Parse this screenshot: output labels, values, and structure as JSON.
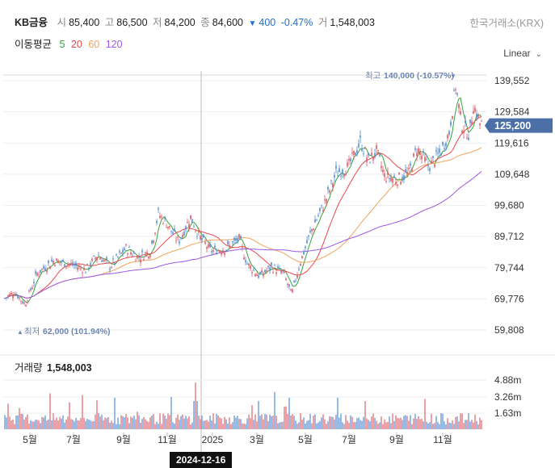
{
  "header": {
    "ticker": "KB금융",
    "open_label": "시",
    "open": "85,400",
    "high_label": "고",
    "high": "86,500",
    "low_label": "저",
    "low": "84,200",
    "close_label": "종",
    "close": "84,600",
    "change_icon": "down-triangle-icon",
    "change": "400",
    "change_pct": "-0.47%",
    "volume_label": "거",
    "volume": "1,548,003",
    "exchange": "한국거래소(KRX)"
  },
  "ma": {
    "label": "이동평균",
    "items": [
      {
        "label": "5",
        "color": "#36a33a"
      },
      {
        "label": "20",
        "color": "#e8474c"
      },
      {
        "label": "60",
        "color": "#f2a35c"
      },
      {
        "label": "120",
        "color": "#9b59e0"
      }
    ]
  },
  "scale": {
    "label": "Linear",
    "icon": "chevron-down-icon"
  },
  "colors": {
    "up": "#e05a66",
    "down": "#4f8fd6",
    "grid": "#ededed",
    "price_tag": "#4c6fa8"
  },
  "chart_data": {
    "type": "candlestick",
    "x_ticks": [
      "5월",
      "7월",
      "9월",
      "11월",
      "2025",
      "3월",
      "5월",
      "7월",
      "9월",
      "11월"
    ],
    "y_ticks": [
      "139,552",
      "129,584",
      "119,616",
      "109,648",
      "99,680",
      "89,712",
      "79,744",
      "69,776",
      "59,808"
    ],
    "ylim": [
      59808,
      139552
    ],
    "current_price": "125,200",
    "max_annotation": {
      "label": "최고",
      "value": "140,000",
      "pct": "(-10.57%)"
    },
    "min_annotation": {
      "label": "최저",
      "value": "62,000",
      "pct": "(101.94%)"
    },
    "crosshair_date": "2024-12-16",
    "close_series_approx": [
      [
        0,
        70000
      ],
      [
        12,
        72000
      ],
      [
        25,
        68000
      ],
      [
        40,
        78000
      ],
      [
        60,
        82000
      ],
      [
        80,
        81000
      ],
      [
        100,
        79000
      ],
      [
        115,
        84000
      ],
      [
        130,
        80000
      ],
      [
        150,
        86000
      ],
      [
        165,
        83000
      ],
      [
        180,
        85000
      ],
      [
        190,
        97000
      ],
      [
        200,
        94000
      ],
      [
        215,
        88000
      ],
      [
        230,
        96000
      ],
      [
        240,
        90000
      ],
      [
        255,
        85000
      ],
      [
        275,
        86000
      ],
      [
        290,
        89000
      ],
      [
        300,
        81000
      ],
      [
        315,
        77000
      ],
      [
        330,
        80000
      ],
      [
        345,
        78000
      ],
      [
        355,
        71000
      ],
      [
        365,
        81000
      ],
      [
        380,
        92000
      ],
      [
        395,
        100000
      ],
      [
        410,
        110000
      ],
      [
        425,
        112000
      ],
      [
        440,
        120000
      ],
      [
        450,
        114000
      ],
      [
        460,
        117000
      ],
      [
        470,
        109000
      ],
      [
        485,
        108000
      ],
      [
        500,
        110000
      ],
      [
        510,
        118000
      ],
      [
        525,
        112000
      ],
      [
        540,
        117000
      ],
      [
        550,
        123000
      ],
      [
        558,
        138000
      ],
      [
        565,
        126000
      ],
      [
        575,
        122000
      ],
      [
        580,
        132000
      ],
      [
        588,
        126000
      ],
      [
        596,
        125200
      ]
    ],
    "volume": {
      "label": "거래량",
      "value": "1,548,003",
      "y_ticks": [
        "4.88m",
        "3.26m",
        "1.63m"
      ]
    }
  }
}
